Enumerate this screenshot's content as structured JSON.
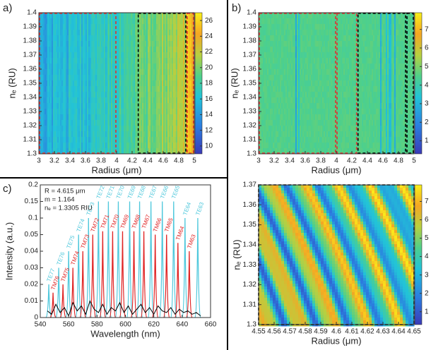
{
  "chart_data": [
    {
      "type": "heatmap",
      "panel_label": "a)",
      "xlabel": "Radius (μm)",
      "ylabel": "nₑ (RU)",
      "xlim": [
        3,
        5
      ],
      "xticks": [
        3,
        3.2,
        3.4,
        3.6,
        3.8,
        4,
        4.2,
        4.4,
        4.6,
        4.8,
        5
      ],
      "ylim": [
        1.3,
        1.4
      ],
      "yticks": [
        1.3,
        1.31,
        1.32,
        1.33,
        1.34,
        1.35,
        1.36,
        1.37,
        1.38,
        1.39,
        1.4
      ],
      "clim": [
        9,
        27
      ],
      "cticks": [
        10,
        12,
        14,
        16,
        18,
        20,
        22,
        24,
        26
      ],
      "regions": [
        {
          "xlim": [
            3,
            4
          ],
          "color": "#e03030"
        },
        {
          "xlim": [
            4.27,
            4.9
          ],
          "color": "#000000"
        },
        {
          "xlim": [
            4.9,
            5
          ],
          "color": "#e03030"
        }
      ]
    },
    {
      "type": "heatmap",
      "panel_label": "b)",
      "xlabel": "Radius (μm)",
      "ylabel": "nₑ (RU)",
      "xlim": [
        3,
        5
      ],
      "xticks": [
        3,
        3.2,
        3.4,
        3.6,
        3.8,
        4,
        4.2,
        4.4,
        4.6,
        4.8,
        5
      ],
      "ylim": [
        1.3,
        1.4
      ],
      "yticks": [
        1.3,
        1.31,
        1.32,
        1.33,
        1.34,
        1.35,
        1.36,
        1.37,
        1.38,
        1.39,
        1.4
      ],
      "clim": [
        0.3,
        7.9
      ],
      "cticks": [
        1,
        2,
        3,
        4,
        5,
        6,
        7
      ],
      "regions": [
        {
          "xlim": [
            3,
            4
          ],
          "color": "#e03030"
        },
        {
          "xlim": [
            4,
            4.27
          ],
          "color": "#e03030"
        },
        {
          "xlim": [
            4.27,
            4.9
          ],
          "color": "#000000"
        },
        {
          "xlim": [
            4.9,
            5
          ],
          "color": "#000000"
        }
      ]
    },
    {
      "type": "line",
      "panel_label": "c)",
      "xlabel": "Wavelength (nm)",
      "ylabel": "Intensity (a.u.)",
      "annotations": [
        "R = 4.615 μm",
        "m = 1.164",
        "nₑ = 1.3305 RIU"
      ],
      "xlim": [
        540,
        660
      ],
      "xticks": [
        540,
        560,
        580,
        600,
        620,
        640,
        660
      ],
      "ylim": [
        0,
        0.2
      ],
      "yticks": [
        0,
        0.01,
        0.02,
        0.03,
        0.04,
        0.05,
        0.1,
        0.15,
        0.2
      ],
      "series": [
        {
          "color": "#4fc8dc",
          "x": [
            546,
            553,
            560,
            567,
            574,
            581,
            588,
            595,
            603,
            610,
            618,
            626,
            634,
            642,
            651
          ],
          "values": [
            0.02,
            0.03,
            0.04,
            0.05,
            0.1,
            0.15,
            0.15,
            0.15,
            0.15,
            0.15,
            0.15,
            0.15,
            0.15,
            0.1,
            0.1
          ],
          "labels": [
            "TE77",
            "TE76",
            "TE75",
            "TE74",
            "TE73",
            "TE72",
            "TE71",
            "TE70",
            "TE69",
            "TE68",
            "TE67",
            "TE66",
            "TE65",
            "TE64",
            "TE63"
          ]
        },
        {
          "color": "#e02424",
          "x": [
            549,
            556,
            563,
            570,
            577,
            584,
            591,
            598,
            606,
            613,
            621,
            629,
            637,
            645
          ],
          "values": [
            0.015,
            0.02,
            0.03,
            0.04,
            0.05,
            0.06,
            0.06,
            0.06,
            0.06,
            0.06,
            0.05,
            0.05,
            0.045,
            0.04
          ],
          "labels": [
            "TM76",
            "TM75",
            "TM74",
            "TM73",
            "TM72",
            "TM71",
            "TM70",
            "TM69",
            "TM68",
            "TM67",
            "TM66",
            "TM65",
            "TM64",
            "TM63"
          ]
        },
        {
          "color": "#000000",
          "x": [
            545,
            548,
            551,
            554,
            557,
            560,
            563,
            566,
            569,
            572,
            575,
            578,
            581,
            584,
            587,
            590,
            593,
            596,
            599,
            602,
            605,
            608,
            611,
            614,
            617,
            620,
            623,
            626,
            629,
            632,
            635,
            638,
            641,
            644,
            647,
            650,
            653
          ],
          "values": [
            0.004,
            0.002,
            0.008,
            0.003,
            0.006,
            0.001,
            0.009,
            0.004,
            0.007,
            0.002,
            0.01,
            0.005,
            0.003,
            0.008,
            0.002,
            0.006,
            0.004,
            0.009,
            0.003,
            0.007,
            0.002,
            0.005,
            0.008,
            0.003,
            0.006,
            0.002,
            0.007,
            0.004,
            0.003,
            0.006,
            0.002,
            0.005,
            0.003,
            0.004,
            0.002,
            0.003,
            0.001
          ]
        }
      ]
    },
    {
      "type": "heatmap",
      "xlabel": "Radius (μm)",
      "ylabel": "nₑ (RU)",
      "xlim": [
        4.55,
        4.65
      ],
      "xticks": [
        4.55,
        4.56,
        4.57,
        4.58,
        4.59,
        4.6,
        4.61,
        4.62,
        4.63,
        4.64,
        4.65
      ],
      "ylim": [
        1.3,
        1.37
      ],
      "yticks": [
        1.3,
        1.31,
        1.32,
        1.33,
        1.34,
        1.35,
        1.36,
        1.37
      ],
      "clim": [
        0.3,
        7.9
      ],
      "cticks": [
        1,
        2,
        3,
        4,
        5,
        6,
        7
      ]
    }
  ]
}
